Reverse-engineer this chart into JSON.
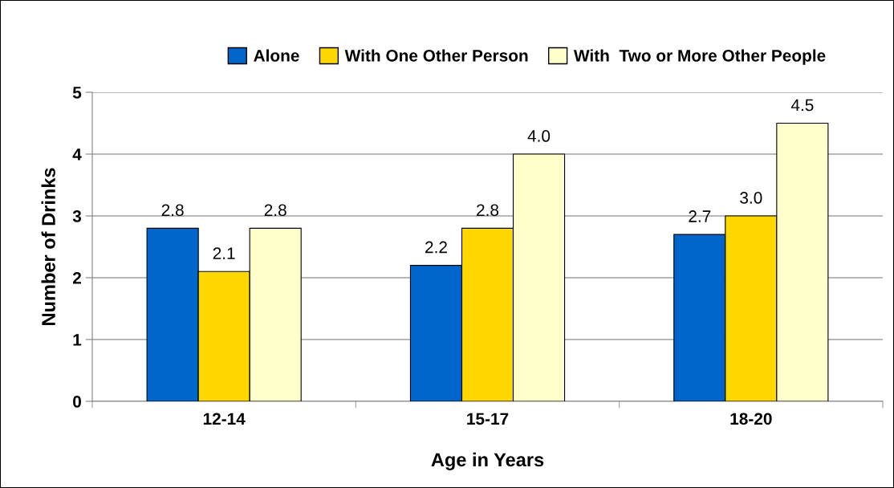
{
  "chart_data": {
    "type": "bar",
    "xlabel": "Age in Years",
    "ylabel": "Number of Drinks",
    "categories": [
      "12-14",
      "15-17",
      "18-20"
    ],
    "series": [
      {
        "name": "Alone",
        "color": "#0066cc",
        "values": [
          2.8,
          2.2,
          2.7
        ],
        "value_labels": [
          "2.8",
          "2.2",
          "2.7"
        ]
      },
      {
        "name": "With One Other Person",
        "color": "#ffd700",
        "values": [
          2.1,
          2.8,
          3.0
        ],
        "value_labels": [
          "2.1",
          "2.8",
          "3.0"
        ]
      },
      {
        "name": "With  Two or More Other People",
        "color": "#ffffcc",
        "values": [
          2.8,
          4.0,
          4.5
        ],
        "value_labels": [
          "2.8",
          "4.0",
          "4.5"
        ]
      }
    ],
    "ylim": [
      0,
      5
    ],
    "yticks": [
      0,
      1,
      2,
      3,
      4,
      5
    ],
    "grid": "y",
    "legend": "top"
  }
}
